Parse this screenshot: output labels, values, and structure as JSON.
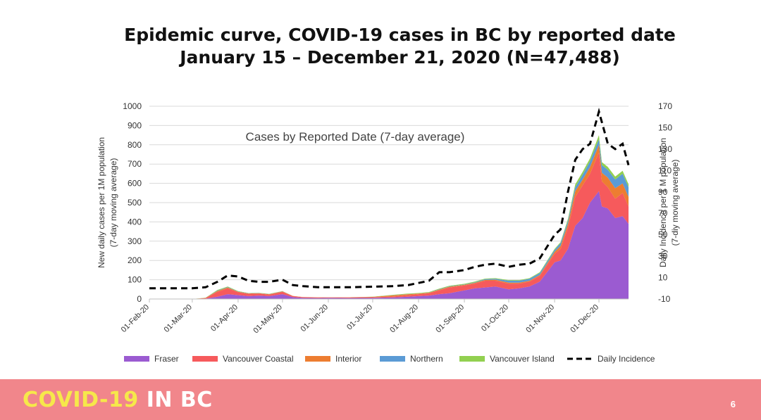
{
  "slide": {
    "title_line1": "Epidemic curve, COVID-19 cases in BC by reported date",
    "title_line2": "January 15 – December 21, 2020 (N=47,488)",
    "brand_part1": "COVID-19",
    "brand_part2": "IN BC",
    "page_number": "6"
  },
  "colors": {
    "fraser": "#9b5bd1",
    "vancouver_coastal": "#f65a5c",
    "interior": "#ed7d31",
    "northern": "#5b9bd5",
    "vancouver_island": "#92d050",
    "daily_incidence": "#000000",
    "footer": "#f1868b",
    "brand_yellow": "#f6e84a"
  },
  "chart_data": {
    "type": "area",
    "stacked": true,
    "title": "Cases by Reported Date (7-day average)",
    "ylabel": "New daily cases per 1M population (7-day moving average)",
    "ylabel_line1": "New daily cases per 1M population",
    "ylabel_line2": "(7-day moving average)",
    "y2label_line1": "Daily Incidence per 1 M population",
    "y2label_line2": "(7-diy moving average)",
    "ylim": [
      0,
      1000
    ],
    "y_ticks": [
      0,
      100,
      200,
      300,
      400,
      500,
      600,
      700,
      800,
      900,
      1000
    ],
    "y2lim": [
      -10,
      170
    ],
    "y2_ticks": [
      -10,
      10,
      30,
      50,
      70,
      90,
      110,
      130,
      150,
      170
    ],
    "x_tick_labels": [
      "01-Feb-20",
      "01-Mar-20",
      "01-Apr-20",
      "01-May-20",
      "01-Jun-20",
      "01-Jul-20",
      "01-Aug-20",
      "01-Sep-20",
      "01-Oct-20",
      "01-Nov-20",
      "01-Dec-20"
    ],
    "x": [
      "2020-02-01",
      "2020-02-15",
      "2020-03-01",
      "2020-03-10",
      "2020-03-18",
      "2020-03-25",
      "2020-04-01",
      "2020-04-08",
      "2020-04-15",
      "2020-04-22",
      "2020-05-01",
      "2020-05-08",
      "2020-05-15",
      "2020-05-25",
      "2020-06-01",
      "2020-06-15",
      "2020-07-01",
      "2020-07-15",
      "2020-07-25",
      "2020-08-01",
      "2020-08-08",
      "2020-08-15",
      "2020-08-22",
      "2020-09-01",
      "2020-09-08",
      "2020-09-15",
      "2020-09-22",
      "2020-10-01",
      "2020-10-08",
      "2020-10-15",
      "2020-10-22",
      "2020-11-01",
      "2020-11-05",
      "2020-11-10",
      "2020-11-15",
      "2020-11-20",
      "2020-11-25",
      "2020-12-01",
      "2020-12-03",
      "2020-12-07",
      "2020-12-12",
      "2020-12-17",
      "2020-12-21"
    ],
    "series": [
      {
        "name": "Fraser",
        "values": [
          0,
          0,
          0,
          2,
          12,
          25,
          20,
          15,
          18,
          15,
          25,
          10,
          6,
          5,
          6,
          5,
          6,
          8,
          12,
          15,
          18,
          25,
          30,
          45,
          55,
          60,
          65,
          50,
          55,
          65,
          90,
          190,
          200,
          260,
          380,
          420,
          500,
          560,
          480,
          470,
          420,
          430,
          390
        ]
      },
      {
        "name": "Vancouver Coastal",
        "values": [
          0,
          0,
          0,
          3,
          25,
          30,
          15,
          12,
          10,
          8,
          12,
          5,
          3,
          3,
          2,
          3,
          3,
          5,
          8,
          10,
          12,
          20,
          30,
          25,
          25,
          35,
          30,
          30,
          25,
          25,
          30,
          45,
          60,
          110,
          150,
          170,
          150,
          200,
          130,
          110,
          100,
          120,
          90
        ]
      },
      {
        "name": "Interior",
        "values": [
          0,
          0,
          0,
          1,
          5,
          5,
          3,
          2,
          2,
          2,
          2,
          1,
          1,
          1,
          1,
          1,
          2,
          6,
          5,
          3,
          3,
          4,
          4,
          4,
          4,
          4,
          5,
          5,
          5,
          5,
          5,
          10,
          15,
          20,
          30,
          30,
          35,
          40,
          45,
          50,
          55,
          50,
          50
        ]
      },
      {
        "name": "Northern",
        "values": [
          0,
          0,
          0,
          0,
          2,
          2,
          1,
          1,
          1,
          1,
          1,
          0,
          0,
          0,
          0,
          0,
          0,
          1,
          1,
          1,
          1,
          2,
          2,
          2,
          3,
          4,
          5,
          10,
          10,
          10,
          10,
          10,
          15,
          15,
          20,
          25,
          30,
          30,
          40,
          40,
          45,
          50,
          50
        ]
      },
      {
        "name": "Vancouver Island",
        "values": [
          0,
          0,
          0,
          1,
          3,
          3,
          2,
          1,
          1,
          1,
          1,
          0,
          0,
          0,
          0,
          0,
          1,
          2,
          2,
          2,
          2,
          3,
          3,
          3,
          3,
          3,
          3,
          3,
          3,
          3,
          4,
          5,
          5,
          10,
          15,
          15,
          15,
          20,
          15,
          15,
          15,
          15,
          15
        ]
      }
    ],
    "line_series": {
      "name": "Daily Incidence",
      "axis": "right",
      "points": [
        {
          "x": "2020-02-01",
          "y": 0
        },
        {
          "x": "2020-02-15",
          "y": 0
        },
        {
          "x": "2020-03-01",
          "y": 0
        },
        {
          "x": "2020-03-10",
          "y": 1
        },
        {
          "x": "2020-03-18",
          "y": 6
        },
        {
          "x": "2020-03-25",
          "y": 12
        },
        {
          "x": "2020-04-01",
          "y": 11
        },
        {
          "x": "2020-04-08",
          "y": 7
        },
        {
          "x": "2020-04-15",
          "y": 6
        },
        {
          "x": "2020-04-22",
          "y": 6
        },
        {
          "x": "2020-05-01",
          "y": 8
        },
        {
          "x": "2020-05-08",
          "y": 3
        },
        {
          "x": "2020-05-15",
          "y": 2
        },
        {
          "x": "2020-05-25",
          "y": 1
        },
        {
          "x": "2020-06-01",
          "y": 1
        },
        {
          "x": "2020-06-15",
          "y": 1
        },
        {
          "x": "2020-07-01",
          "y": 1.5
        },
        {
          "x": "2020-07-15",
          "y": 2
        },
        {
          "x": "2020-07-25",
          "y": 3
        },
        {
          "x": "2020-08-01",
          "y": 5
        },
        {
          "x": "2020-08-08",
          "y": 7
        },
        {
          "x": "2020-08-15",
          "y": 15
        },
        {
          "x": "2020-08-22",
          "y": 15
        },
        {
          "x": "2020-09-01",
          "y": 17
        },
        {
          "x": "2020-09-08",
          "y": 20
        },
        {
          "x": "2020-09-15",
          "y": 22
        },
        {
          "x": "2020-09-22",
          "y": 23
        },
        {
          "x": "2020-10-01",
          "y": 20
        },
        {
          "x": "2020-10-08",
          "y": 22
        },
        {
          "x": "2020-10-15",
          "y": 23
        },
        {
          "x": "2020-10-22",
          "y": 28
        },
        {
          "x": "2020-11-01",
          "y": 50
        },
        {
          "x": "2020-11-05",
          "y": 55
        },
        {
          "x": "2020-11-10",
          "y": 90
        },
        {
          "x": "2020-11-15",
          "y": 120
        },
        {
          "x": "2020-11-20",
          "y": 130
        },
        {
          "x": "2020-11-25",
          "y": 135
        },
        {
          "x": "2020-12-01",
          "y": 165
        },
        {
          "x": "2020-12-03",
          "y": 155
        },
        {
          "x": "2020-12-07",
          "y": 135
        },
        {
          "x": "2020-12-12",
          "y": 130
        },
        {
          "x": "2020-12-17",
          "y": 135
        },
        {
          "x": "2020-12-21",
          "y": 115
        }
      ]
    },
    "legend": [
      "Fraser",
      "Vancouver Coastal",
      "Interior",
      "Northern",
      "Vancouver Island",
      "Daily Incidence"
    ],
    "legend_position": "bottom",
    "grid": true
  }
}
